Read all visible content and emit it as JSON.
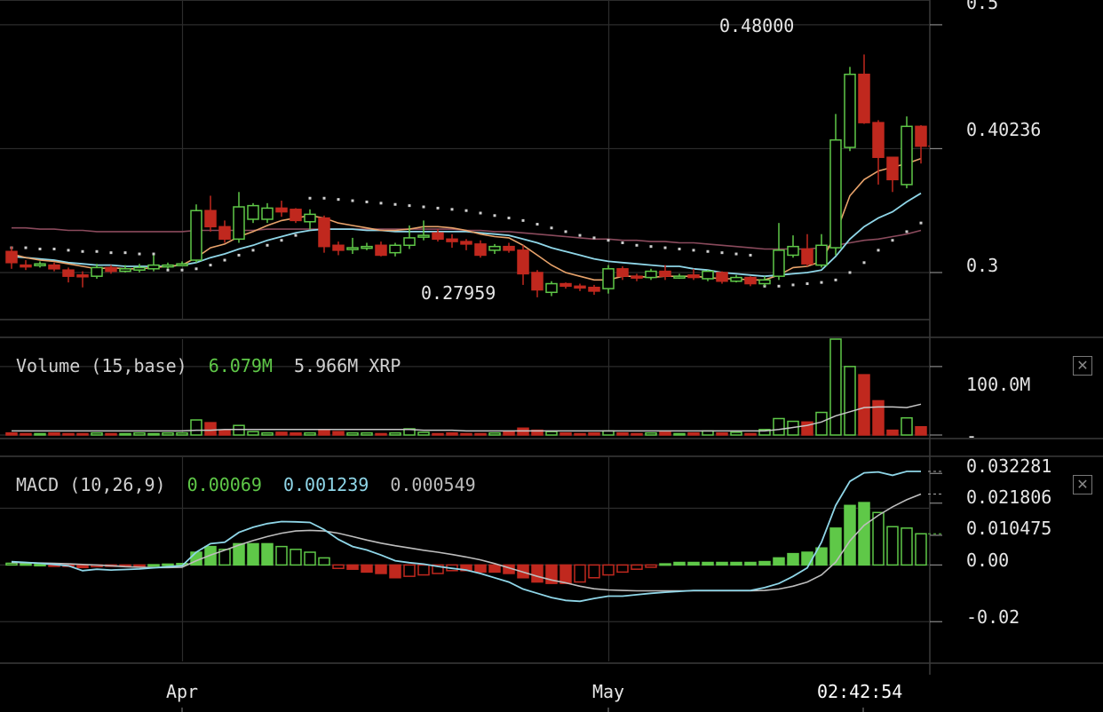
{
  "colors": {
    "up": "#5fc848",
    "down": "#c0281e",
    "sma_short": "#e8a36b",
    "sma_mid": "#8fd6e8",
    "sma_long": "#8a4a5c",
    "sar": "#cfcfcf",
    "macd_line": "#8fd6e8",
    "signal_line": "#bdbdbd",
    "grid": "#2c2c2c"
  },
  "icons": {
    "close": "close-icon"
  },
  "clock": "02:42:54",
  "x_labels": [
    {
      "label": "Apr",
      "index": 12
    },
    {
      "label": "May",
      "index": 42
    }
  ],
  "chart_data": [
    {
      "type": "candlestick",
      "title": "",
      "ylim": [
        0.262,
        0.52
      ],
      "yticks": [
        "0.3"
      ],
      "current_price_label": "0.40236",
      "top_tick_label": "0.5",
      "high_marker": "0.48000",
      "low_marker": "0.27959",
      "candles": [
        [
          0.317,
          0.308,
          0.321,
          0.303
        ],
        [
          0.306,
          0.305,
          0.31,
          0.302
        ],
        [
          0.306,
          0.307,
          0.309,
          0.304
        ],
        [
          0.306,
          0.303,
          0.308,
          0.301
        ],
        [
          0.302,
          0.297,
          0.304,
          0.292
        ],
        [
          0.298,
          0.297,
          0.301,
          0.288
        ],
        [
          0.297,
          0.304,
          0.307,
          0.295
        ],
        [
          0.304,
          0.301,
          0.306,
          0.299
        ],
        [
          0.301,
          0.303,
          0.306,
          0.3
        ],
        [
          0.302,
          0.304,
          0.307,
          0.3
        ],
        [
          0.303,
          0.306,
          0.314,
          0.301
        ],
        [
          0.305,
          0.306,
          0.308,
          0.303
        ],
        [
          0.307,
          0.307,
          0.309,
          0.305
        ],
        [
          0.31,
          0.35,
          0.355,
          0.308
        ],
        [
          0.35,
          0.337,
          0.362,
          0.333
        ],
        [
          0.337,
          0.327,
          0.342,
          0.324
        ],
        [
          0.327,
          0.353,
          0.365,
          0.324
        ],
        [
          0.343,
          0.354,
          0.356,
          0.34
        ],
        [
          0.343,
          0.352,
          0.356,
          0.34
        ],
        [
          0.352,
          0.349,
          0.358,
          0.345
        ],
        [
          0.351,
          0.342,
          0.352,
          0.34
        ],
        [
          0.341,
          0.347,
          0.351,
          0.335
        ],
        [
          0.344,
          0.321,
          0.346,
          0.316
        ],
        [
          0.322,
          0.318,
          0.325,
          0.314
        ],
        [
          0.32,
          0.32,
          0.328,
          0.315
        ],
        [
          0.32,
          0.321,
          0.324,
          0.318
        ],
        [
          0.322,
          0.314,
          0.325,
          0.313
        ],
        [
          0.316,
          0.322,
          0.324,
          0.313
        ],
        [
          0.322,
          0.328,
          0.338,
          0.319
        ],
        [
          0.329,
          0.33,
          0.342,
          0.326
        ],
        [
          0.332,
          0.327,
          0.335,
          0.325
        ],
        [
          0.327,
          0.325,
          0.331,
          0.32
        ],
        [
          0.325,
          0.323,
          0.327,
          0.318
        ],
        [
          0.323,
          0.314,
          0.326,
          0.312
        ],
        [
          0.318,
          0.321,
          0.323,
          0.315
        ],
        [
          0.321,
          0.318,
          0.324,
          0.316
        ],
        [
          0.318,
          0.299,
          0.322,
          0.29
        ],
        [
          0.3,
          0.286,
          0.302,
          0.28
        ],
        [
          0.284,
          0.291,
          0.293,
          0.281
        ],
        [
          0.291,
          0.289,
          0.292,
          0.287
        ],
        [
          0.289,
          0.288,
          0.291,
          0.285
        ],
        [
          0.288,
          0.285,
          0.29,
          0.282
        ],
        [
          0.287,
          0.303,
          0.306,
          0.283
        ],
        [
          0.303,
          0.297,
          0.305,
          0.294
        ],
        [
          0.297,
          0.296,
          0.299,
          0.293
        ],
        [
          0.296,
          0.301,
          0.303,
          0.294
        ],
        [
          0.301,
          0.297,
          0.306,
          0.294
        ],
        [
          0.297,
          0.297,
          0.299,
          0.295
        ],
        [
          0.298,
          0.296,
          0.303,
          0.294
        ],
        [
          0.295,
          0.301,
          0.302,
          0.293
        ],
        [
          0.3,
          0.293,
          0.301,
          0.291
        ],
        [
          0.293,
          0.296,
          0.298,
          0.292
        ],
        [
          0.296,
          0.291,
          0.297,
          0.289
        ],
        [
          0.291,
          0.294,
          0.297,
          0.289
        ],
        [
          0.297,
          0.318,
          0.34,
          0.294
        ],
        [
          0.314,
          0.321,
          0.33,
          0.312
        ],
        [
          0.319,
          0.307,
          0.331,
          0.305
        ],
        [
          0.306,
          0.322,
          0.331,
          0.304
        ],
        [
          0.32,
          0.407,
          0.428,
          0.314
        ],
        [
          0.401,
          0.46,
          0.466,
          0.398
        ],
        [
          0.46,
          0.421,
          0.476,
          0.42
        ],
        [
          0.421,
          0.393,
          0.423,
          0.371
        ],
        [
          0.393,
          0.375,
          0.392,
          0.365
        ],
        [
          0.371,
          0.418,
          0.426,
          0.368
        ],
        [
          0.418,
          0.402,
          0.419,
          0.388
        ]
      ],
      "sma_short": [
        0.315,
        0.312,
        0.31,
        0.309,
        0.307,
        0.305,
        0.303,
        0.304,
        0.303,
        0.303,
        0.304,
        0.305,
        0.306,
        0.312,
        0.32,
        0.323,
        0.329,
        0.333,
        0.338,
        0.342,
        0.344,
        0.346,
        0.344,
        0.34,
        0.338,
        0.336,
        0.334,
        0.334,
        0.335,
        0.337,
        0.337,
        0.336,
        0.334,
        0.331,
        0.329,
        0.328,
        0.322,
        0.314,
        0.306,
        0.3,
        0.297,
        0.294,
        0.294,
        0.297,
        0.297,
        0.296,
        0.297,
        0.297,
        0.297,
        0.296,
        0.295,
        0.295,
        0.294,
        0.294,
        0.298,
        0.304,
        0.305,
        0.309,
        0.331,
        0.362,
        0.375,
        0.382,
        0.385,
        0.388,
        0.392
      ],
      "sma_mid": [
        0.313,
        0.312,
        0.311,
        0.31,
        0.308,
        0.307,
        0.306,
        0.306,
        0.305,
        0.305,
        0.305,
        0.305,
        0.306,
        0.308,
        0.312,
        0.315,
        0.319,
        0.322,
        0.326,
        0.329,
        0.332,
        0.334,
        0.335,
        0.335,
        0.335,
        0.334,
        0.334,
        0.333,
        0.333,
        0.333,
        0.333,
        0.333,
        0.333,
        0.332,
        0.331,
        0.33,
        0.327,
        0.324,
        0.32,
        0.317,
        0.314,
        0.311,
        0.309,
        0.308,
        0.307,
        0.306,
        0.305,
        0.305,
        0.303,
        0.302,
        0.3,
        0.299,
        0.298,
        0.297,
        0.298,
        0.299,
        0.3,
        0.302,
        0.313,
        0.327,
        0.337,
        0.344,
        0.349,
        0.357,
        0.364
      ],
      "sma_long": [
        0.336,
        0.336,
        0.335,
        0.335,
        0.334,
        0.334,
        0.333,
        0.333,
        0.333,
        0.333,
        0.333,
        0.333,
        0.333,
        0.334,
        0.334,
        0.334,
        0.334,
        0.334,
        0.335,
        0.335,
        0.335,
        0.335,
        0.335,
        0.335,
        0.335,
        0.335,
        0.335,
        0.335,
        0.335,
        0.335,
        0.335,
        0.335,
        0.334,
        0.334,
        0.333,
        0.333,
        0.332,
        0.331,
        0.33,
        0.329,
        0.328,
        0.327,
        0.327,
        0.326,
        0.326,
        0.325,
        0.325,
        0.324,
        0.324,
        0.323,
        0.322,
        0.321,
        0.32,
        0.319,
        0.319,
        0.319,
        0.319,
        0.32,
        0.322,
        0.324,
        0.326,
        0.327,
        0.329,
        0.331,
        0.334
      ],
      "sar": [
        0.32,
        0.32,
        0.319,
        0.319,
        0.318,
        0.317,
        0.317,
        0.316,
        0.316,
        0.315,
        0.315,
        0.302,
        0.302,
        0.303,
        0.306,
        0.31,
        0.314,
        0.318,
        0.322,
        0.326,
        0.33,
        0.36,
        0.36,
        0.359,
        0.358,
        0.357,
        0.356,
        0.355,
        0.354,
        0.353,
        0.352,
        0.351,
        0.35,
        0.348,
        0.346,
        0.344,
        0.342,
        0.339,
        0.336,
        0.333,
        0.33,
        0.328,
        0.326,
        0.324,
        0.322,
        0.321,
        0.32,
        0.319,
        0.318,
        0.317,
        0.316,
        0.315,
        0.314,
        0.289,
        0.289,
        0.29,
        0.291,
        0.292,
        0.294,
        0.3,
        0.308,
        0.318,
        0.326,
        0.333,
        0.34
      ]
    },
    {
      "type": "bar",
      "title": "Volume (15,base)",
      "legend": [
        "6.079M",
        "5.966M XRP"
      ],
      "ylim": [
        0,
        140
      ],
      "ytick_labels": [
        "100.0M",
        "-"
      ],
      "values": [
        3,
        2,
        2,
        3,
        2,
        2,
        3,
        2,
        2,
        3,
        2,
        3,
        3,
        22,
        18,
        7,
        14,
        5,
        3,
        4,
        3,
        3,
        8,
        5,
        3,
        3,
        2,
        3,
        9,
        4,
        2,
        3,
        2,
        2,
        3,
        5,
        10,
        7,
        5,
        3,
        2,
        3,
        6,
        3,
        2,
        3,
        4,
        2,
        3,
        6,
        3,
        4,
        2,
        8,
        24,
        20,
        19,
        33,
        140,
        100,
        88,
        50,
        7,
        25,
        12
      ],
      "moving_avg": [
        6,
        6,
        6,
        6,
        6,
        6,
        6,
        6,
        6,
        6,
        6,
        6,
        6,
        7,
        7,
        8,
        8,
        8,
        8,
        8,
        8,
        8,
        8,
        8,
        8,
        8,
        8,
        8,
        8,
        7,
        7,
        7,
        6,
        6,
        6,
        6,
        6,
        6,
        6,
        6,
        6,
        6,
        6,
        6,
        6,
        6,
        6,
        6,
        6,
        6,
        6,
        6,
        6,
        6,
        8,
        11,
        14,
        19,
        28,
        34,
        40,
        41,
        41,
        40,
        45
      ]
    },
    {
      "type": "bar",
      "title": "MACD (10,26,9)",
      "legend": [
        "0.00069",
        "0.001239",
        "0.000549"
      ],
      "ylim": [
        -0.034,
        0.038
      ],
      "ytick_labels": [
        "0.032281",
        "0.021806",
        "0.010475",
        "0.00",
        "-0.02"
      ],
      "histogram": [
        0.0006,
        0.0004,
        0.0002,
        -0.0002,
        -0.0005,
        -0.0009,
        -0.0006,
        -0.0004,
        -0.0002,
        -0.0001,
        0.0001,
        0.0003,
        0.0005,
        0.0045,
        0.0065,
        0.0055,
        0.0075,
        0.0075,
        0.0075,
        0.0065,
        0.0055,
        0.0045,
        0.0025,
        -0.0012,
        -0.0015,
        -0.0025,
        -0.003,
        -0.0045,
        -0.004,
        -0.0035,
        -0.003,
        -0.002,
        -0.002,
        -0.0025,
        -0.0025,
        -0.003,
        -0.0045,
        -0.006,
        -0.0065,
        -0.0065,
        -0.006,
        -0.0045,
        -0.0035,
        -0.0025,
        -0.0015,
        -0.0008,
        0.0004,
        0.0009,
        0.0009,
        0.0009,
        0.0009,
        0.0009,
        0.0009,
        0.0012,
        0.0025,
        0.004,
        0.0045,
        0.006,
        0.013,
        0.021,
        0.022,
        0.0185,
        0.0135,
        0.013,
        0.011
      ],
      "macd": [
        0.0012,
        0.0009,
        0.0006,
        0.0002,
        -0.0003,
        -0.002,
        -0.0015,
        -0.0018,
        -0.0016,
        -0.0014,
        -0.001,
        -0.0006,
        -0.0003,
        0.0045,
        0.0075,
        0.008,
        0.0115,
        0.0133,
        0.0146,
        0.0153,
        0.0152,
        0.015,
        0.0125,
        0.009,
        0.0065,
        0.0053,
        0.0035,
        0.0015,
        0.0008,
        0.0003,
        -0.0005,
        -0.0012,
        -0.0018,
        -0.003,
        -0.0045,
        -0.006,
        -0.0085,
        -0.01,
        -0.0115,
        -0.0125,
        -0.0128,
        -0.0118,
        -0.011,
        -0.011,
        -0.0105,
        -0.01,
        -0.0096,
        -0.0093,
        -0.009,
        -0.009,
        -0.009,
        -0.009,
        -0.009,
        -0.008,
        -0.0065,
        -0.004,
        -0.001,
        0.008,
        0.021,
        0.0295,
        0.0325,
        0.0328,
        0.0316,
        0.033,
        0.033
      ],
      "signal": [
        0.0009,
        0.0008,
        0.0007,
        0.0006,
        0.0004,
        0.0002,
        0.0,
        -0.0003,
        -0.0006,
        -0.0008,
        -0.0009,
        -0.0009,
        -0.0008,
        0.0015,
        0.0035,
        0.0052,
        0.007,
        0.0086,
        0.01,
        0.0112,
        0.012,
        0.0122,
        0.012,
        0.0112,
        0.01,
        0.0088,
        0.0077,
        0.0068,
        0.006,
        0.0052,
        0.0045,
        0.0037,
        0.0028,
        0.0018,
        0.0005,
        -0.001,
        -0.0025,
        -0.004,
        -0.0053,
        -0.0063,
        -0.0075,
        -0.0084,
        -0.0088,
        -0.009,
        -0.0091,
        -0.0091,
        -0.0091,
        -0.0091,
        -0.0091,
        -0.0091,
        -0.0091,
        -0.0091,
        -0.0091,
        -0.009,
        -0.0085,
        -0.0075,
        -0.006,
        -0.0035,
        0.001,
        0.0085,
        0.014,
        0.0175,
        0.0205,
        0.023,
        0.025
      ]
    }
  ]
}
